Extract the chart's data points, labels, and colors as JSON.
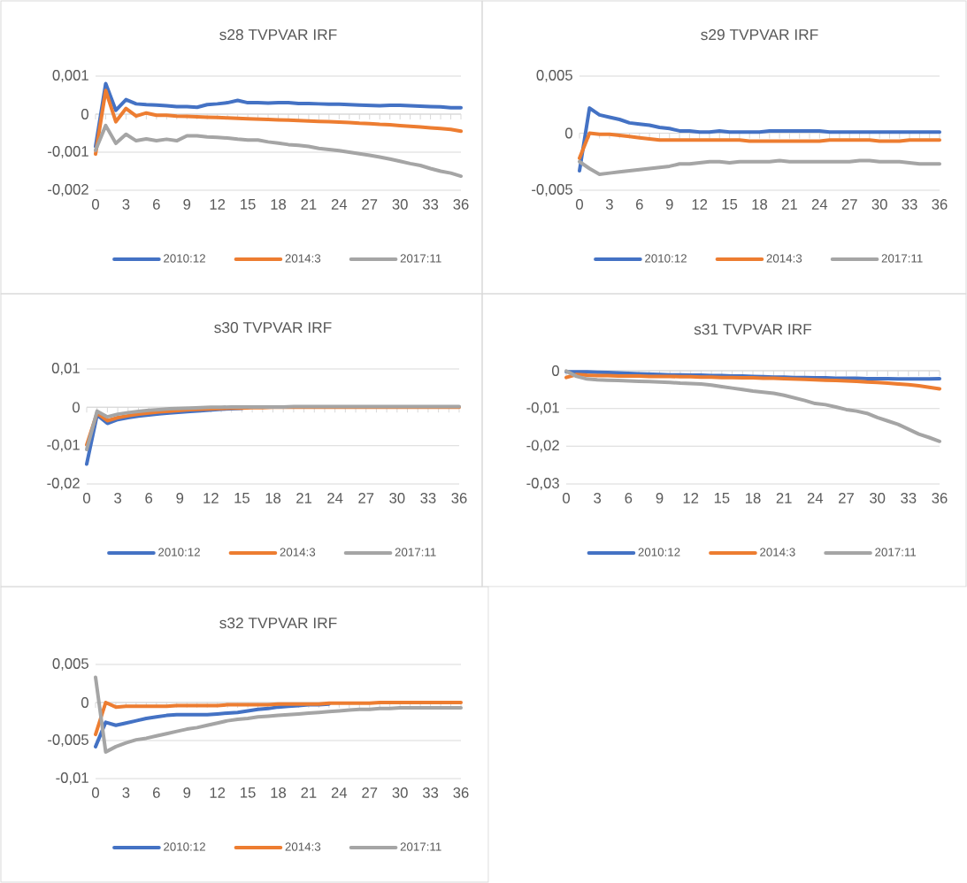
{
  "chart_data": [
    {
      "type": "line",
      "title": "s28 TVPVAR IRF",
      "categories": [
        "0",
        null,
        null,
        "3",
        null,
        null,
        "6",
        null,
        null,
        "9",
        null,
        null,
        "12",
        null,
        null,
        "15",
        null,
        null,
        "18",
        null,
        null,
        "21",
        null,
        null,
        "24",
        null,
        null,
        "27",
        null,
        null,
        "30",
        null,
        null,
        "33",
        null,
        null,
        "36"
      ],
      "series": [
        {
          "name": "2010:12",
          "color": "#4472c4",
          "values": [
            -0.00085,
            0.0008,
            0.0001,
            0.00038,
            0.00027,
            0.00025,
            0.00024,
            0.00022,
            0.0002,
            0.0002,
            0.00018,
            0.00025,
            0.00027,
            0.0003,
            0.00036,
            0.0003,
            0.0003,
            0.00029,
            0.0003,
            0.0003,
            0.00028,
            0.00028,
            0.00027,
            0.00026,
            0.00026,
            0.00025,
            0.00024,
            0.00023,
            0.00022,
            0.00023,
            0.00023,
            0.00022,
            0.00021,
            0.0002,
            0.00019,
            0.00017,
            0.00017
          ]
        },
        {
          "name": "2014:3",
          "color": "#ed7d31",
          "values": [
            -0.00105,
            0.00062,
            -0.0002,
            0.00015,
            -5e-05,
            3e-05,
            -3e-05,
            -3e-05,
            -5e-05,
            -6e-05,
            -7e-05,
            -8e-05,
            -9e-05,
            -0.0001,
            -0.00011,
            -0.00012,
            -0.00013,
            -0.00014,
            -0.00015,
            -0.00016,
            -0.00017,
            -0.00018,
            -0.00019,
            -0.0002,
            -0.00021,
            -0.00022,
            -0.00024,
            -0.00025,
            -0.00027,
            -0.00028,
            -0.0003,
            -0.00032,
            -0.00034,
            -0.00036,
            -0.00038,
            -0.0004,
            -0.00045
          ]
        },
        {
          "name": "2017:11",
          "color": "#a5a5a5",
          "values": [
            -0.00095,
            -0.0003,
            -0.00077,
            -0.00053,
            -0.0007,
            -0.00065,
            -0.0007,
            -0.00066,
            -0.0007,
            -0.00057,
            -0.00057,
            -0.0006,
            -0.00061,
            -0.00063,
            -0.00066,
            -0.00068,
            -0.00068,
            -0.00073,
            -0.00076,
            -0.0008,
            -0.00082,
            -0.00085,
            -0.0009,
            -0.00093,
            -0.00096,
            -0.001,
            -0.00104,
            -0.00108,
            -0.00113,
            -0.00118,
            -0.00124,
            -0.0013,
            -0.00135,
            -0.00143,
            -0.0015,
            -0.00155,
            -0.00163
          ]
        }
      ],
      "ylim": [
        -0.002,
        0.001
      ],
      "yticks": [
        {
          "value": -0.002,
          "label": "-0,002"
        },
        {
          "value": -0.001,
          "label": "-0,001"
        },
        0,
        {
          "value": 0.001,
          "label": "0,001"
        }
      ],
      "grid": "y",
      "legend": "bottom"
    },
    {
      "type": "line",
      "title": "s29 TVPVAR IRF",
      "categories": [
        "0",
        null,
        null,
        "3",
        null,
        null,
        "6",
        null,
        null,
        "9",
        null,
        null,
        "12",
        null,
        null,
        "15",
        null,
        null,
        "18",
        null,
        null,
        "21",
        null,
        null,
        "24",
        null,
        null,
        "27",
        null,
        null,
        "30",
        null,
        null,
        "33",
        null,
        null,
        "36"
      ],
      "series": [
        {
          "name": "2010:12",
          "color": "#4472c4",
          "values": [
            -0.0033,
            0.0022,
            0.0016,
            0.0014,
            0.0012,
            0.0009,
            0.0008,
            0.0007,
            0.0005,
            0.0004,
            0.0002,
            0.0002,
            0.0001,
            0.0001,
            0.0002,
            0.0001,
            0.0001,
            0.0001,
            0.0001,
            0.0002,
            0.0002,
            0.0002,
            0.0002,
            0.0002,
            0.0002,
            0.0001,
            0.0001,
            0.0001,
            0.0001,
            0.0001,
            0.0001,
            0.0001,
            0.0001,
            0.0001,
            0.0001,
            0.0001,
            0.0001
          ]
        },
        {
          "name": "2014:3",
          "color": "#ed7d31",
          "values": [
            -0.0022,
            0,
            -0.0001,
            -0.0001,
            -0.0002,
            -0.0003,
            -0.0004,
            -0.0005,
            -0.0006,
            -0.0006,
            -0.0006,
            -0.0006,
            -0.0006,
            -0.0006,
            -0.0006,
            -0.0006,
            -0.0006,
            -0.0007,
            -0.0007,
            -0.0007,
            -0.0007,
            -0.0007,
            -0.0007,
            -0.0007,
            -0.0007,
            -0.0006,
            -0.0006,
            -0.0006,
            -0.0006,
            -0.0006,
            -0.0007,
            -0.0007,
            -0.0007,
            -0.0006,
            -0.0006,
            -0.0006,
            -0.0006
          ]
        },
        {
          "name": "2017:11",
          "color": "#a5a5a5",
          "values": [
            -0.0025,
            -0.0031,
            -0.0036,
            -0.0035,
            -0.0034,
            -0.0033,
            -0.0032,
            -0.0031,
            -0.003,
            -0.0029,
            -0.0027,
            -0.0027,
            -0.0026,
            -0.0025,
            -0.0025,
            -0.0026,
            -0.0025,
            -0.0025,
            -0.0025,
            -0.0025,
            -0.0024,
            -0.0025,
            -0.0025,
            -0.0025,
            -0.0025,
            -0.0025,
            -0.0025,
            -0.0025,
            -0.0024,
            -0.0024,
            -0.0025,
            -0.0025,
            -0.0025,
            -0.0026,
            -0.0027,
            -0.0027,
            -0.0027
          ]
        }
      ],
      "ylim": [
        -0.005,
        0.005
      ],
      "yticks": [
        {
          "value": -0.005,
          "label": "-0,005"
        },
        0,
        {
          "value": 0.005,
          "label": "0,005"
        }
      ],
      "grid": "y",
      "legend": "bottom"
    },
    {
      "type": "line",
      "title": "s30 TVPVAR IRF",
      "categories": [
        "0",
        null,
        null,
        "3",
        null,
        null,
        "6",
        null,
        null,
        "9",
        null,
        null,
        "12",
        null,
        null,
        "15",
        null,
        null,
        "18",
        null,
        null,
        "21",
        null,
        null,
        "24",
        null,
        null,
        "27",
        null,
        null,
        "30",
        null,
        null,
        "33",
        null,
        null,
        "36"
      ],
      "series": [
        {
          "name": "2010:12",
          "color": "#4472c4",
          "values": [
            -0.0148,
            -0.002,
            -0.0042,
            -0.0032,
            -0.0027,
            -0.0023,
            -0.002,
            -0.0017,
            -0.0015,
            -0.0013,
            -0.0011,
            -0.0009,
            -0.0007,
            -0.0005,
            -0.0004,
            -0.0003,
            null,
            null,
            null,
            null,
            null,
            null,
            null,
            null,
            null,
            null,
            null,
            null,
            null,
            null,
            null,
            null,
            null,
            null,
            null,
            null,
            null
          ]
        },
        {
          "name": "2014:3",
          "color": "#ed7d31",
          "values": [
            -0.0098,
            -0.0015,
            -0.0035,
            -0.0027,
            -0.0022,
            -0.0018,
            -0.0015,
            -0.0012,
            -0.001,
            -0.0008,
            -0.0006,
            -0.0005,
            -0.0004,
            -0.0003,
            -0.0002,
            -0.0002,
            -0.0001,
            -0.0001,
            0,
            0,
            0,
            0,
            0,
            0,
            0,
            0,
            0,
            0,
            0,
            0,
            0,
            0,
            0,
            0,
            0,
            0,
            0
          ]
        },
        {
          "name": "2017:11",
          "color": "#a5a5a5",
          "values": [
            -0.011,
            -0.001,
            -0.0025,
            -0.0018,
            -0.0014,
            -0.0011,
            -0.0008,
            -0.0006,
            -0.0004,
            -0.0003,
            -0.0002,
            -0.0001,
            0,
            0,
            0.0001,
            0.0001,
            0.0001,
            0.0001,
            0.0001,
            0.0001,
            0.0002,
            0.0002,
            0.0002,
            0.0002,
            0.0002,
            0.0002,
            0.0002,
            0.0002,
            0.0002,
            0.0002,
            0.0002,
            0.0002,
            0.0002,
            0.0002,
            0.0002,
            0.0002,
            0.0002
          ]
        }
      ],
      "ylim": [
        -0.02,
        0.01
      ],
      "yticks": [
        {
          "value": -0.02,
          "label": "-0,02"
        },
        {
          "value": -0.01,
          "label": "-0,01"
        },
        0,
        {
          "value": 0.01,
          "label": "0,01"
        }
      ],
      "grid": "y",
      "legend": "bottom"
    },
    {
      "type": "line",
      "title": "s31 TVPVAR IRF",
      "categories": [
        "0",
        null,
        null,
        "3",
        null,
        null,
        "6",
        null,
        null,
        "9",
        null,
        null,
        "12",
        null,
        null,
        "15",
        null,
        null,
        "18",
        null,
        null,
        "21",
        null,
        null,
        "24",
        null,
        null,
        "27",
        null,
        null,
        "30",
        null,
        null,
        "33",
        null,
        null,
        "36"
      ],
      "series": [
        {
          "name": "2010:12",
          "color": "#4472c4",
          "values": [
            -0.0003,
            -0.0003,
            -0.0003,
            -0.0004,
            -0.0005,
            -0.0006,
            -0.0007,
            -0.0008,
            -0.0009,
            -0.001,
            -0.0011,
            -0.0011,
            -0.0012,
            -0.0012,
            -0.0013,
            -0.0013,
            -0.0014,
            -0.0014,
            -0.0015,
            -0.0016,
            -0.0017,
            -0.0017,
            -0.0018,
            -0.0018,
            -0.0019,
            -0.0019,
            -0.002,
            -0.002,
            -0.002,
            -0.0021,
            -0.0021,
            -0.0021,
            -0.0022,
            -0.0022,
            -0.0022,
            -0.0022,
            -0.0021
          ]
        },
        {
          "name": "2014:3",
          "color": "#ed7d31",
          "values": [
            -0.0018,
            -0.001,
            -0.0012,
            -0.0013,
            -0.0013,
            -0.0014,
            -0.0014,
            -0.0014,
            -0.0015,
            -0.0015,
            -0.0015,
            -0.0016,
            -0.0016,
            -0.0017,
            -0.0017,
            -0.0018,
            -0.0018,
            -0.0019,
            -0.0019,
            -0.002,
            -0.002,
            -0.0021,
            -0.0022,
            -0.0023,
            -0.0024,
            -0.0025,
            -0.0026,
            -0.0027,
            -0.0028,
            -0.003,
            -0.0031,
            -0.0033,
            -0.0035,
            -0.0037,
            -0.004,
            -0.0044,
            -0.0048
          ]
        },
        {
          "name": "2017:11",
          "color": "#a5a5a5",
          "values": [
            -0.0001,
            -0.0015,
            -0.0022,
            -0.0024,
            -0.0025,
            -0.0026,
            -0.0027,
            -0.0028,
            -0.0029,
            -0.003,
            -0.0031,
            -0.0033,
            -0.0034,
            -0.0035,
            -0.0038,
            -0.0042,
            -0.0046,
            -0.005,
            -0.0054,
            -0.0057,
            -0.006,
            -0.0065,
            -0.0072,
            -0.0079,
            -0.0087,
            -0.009,
            -0.0096,
            -0.0103,
            -0.0107,
            -0.0113,
            -0.0124,
            -0.0133,
            -0.0142,
            -0.0155,
            -0.0168,
            -0.0177,
            -0.0187
          ]
        }
      ],
      "ylim": [
        -0.03,
        0
      ],
      "yticks": [
        {
          "value": -0.03,
          "label": "-0,03"
        },
        {
          "value": -0.02,
          "label": "-0,02"
        },
        {
          "value": -0.01,
          "label": "-0,01"
        },
        0
      ],
      "grid": "y",
      "legend": "bottom"
    },
    {
      "type": "line",
      "title": "s32 TVPVAR IRF",
      "categories": [
        "0",
        null,
        null,
        "3",
        null,
        null,
        "6",
        null,
        null,
        "9",
        null,
        null,
        "12",
        null,
        null,
        "15",
        null,
        null,
        "18",
        null,
        null,
        "21",
        null,
        null,
        "24",
        null,
        null,
        "27",
        null,
        null,
        "30",
        null,
        null,
        "33",
        null,
        null,
        "36"
      ],
      "series": [
        {
          "name": "2010:12",
          "color": "#4472c4",
          "values": [
            -0.0058,
            -0.0026,
            -0.003,
            -0.0027,
            -0.0024,
            -0.0021,
            -0.0019,
            -0.0017,
            -0.0016,
            -0.0016,
            -0.0016,
            -0.0016,
            -0.0015,
            -0.0014,
            -0.0013,
            -0.0011,
            -0.0009,
            -0.0008,
            -0.0006,
            -0.0005,
            -0.0004,
            -0.0003,
            -0.0003,
            -0.0002,
            null,
            null,
            null,
            null,
            null,
            null,
            null,
            null,
            null,
            null,
            null,
            null,
            null
          ]
        },
        {
          "name": "2014:3",
          "color": "#ed7d31",
          "values": [
            -0.0042,
            0,
            -0.0006,
            -0.0005,
            -0.0005,
            -0.0005,
            -0.0005,
            -0.0005,
            -0.0004,
            -0.0004,
            -0.0004,
            -0.0004,
            -0.0004,
            -0.0003,
            -0.0003,
            -0.0003,
            -0.0003,
            -0.0003,
            -0.0002,
            -0.0002,
            -0.0002,
            -0.0002,
            -0.0002,
            -0.0001,
            -0.0001,
            -0.0001,
            -0.0001,
            -0.0001,
            0,
            0,
            0,
            0,
            0,
            0,
            0,
            0,
            0
          ]
        },
        {
          "name": "2017:11",
          "color": "#a5a5a5",
          "values": [
            0.0033,
            -0.0065,
            -0.0058,
            -0.0053,
            -0.0049,
            -0.0047,
            -0.0044,
            -0.0041,
            -0.0038,
            -0.0035,
            -0.0033,
            -0.003,
            -0.0027,
            -0.0024,
            -0.0022,
            -0.0021,
            -0.0019,
            -0.0018,
            -0.0017,
            -0.0016,
            -0.0015,
            -0.0014,
            -0.0013,
            -0.0012,
            -0.0011,
            -0.001,
            -0.0009,
            -0.0009,
            -0.0008,
            -0.0008,
            -0.0007,
            -0.0007,
            -0.0007,
            -0.0007,
            -0.0007,
            -0.0007,
            -0.0007
          ]
        }
      ],
      "ylim": [
        -0.01,
        0.005
      ],
      "yticks": [
        {
          "value": -0.01,
          "label": "-0,01"
        },
        {
          "value": -0.005,
          "label": "-0,005"
        },
        0,
        {
          "value": 0.005,
          "label": "0,005"
        }
      ],
      "grid": "y",
      "legend": "bottom"
    }
  ]
}
